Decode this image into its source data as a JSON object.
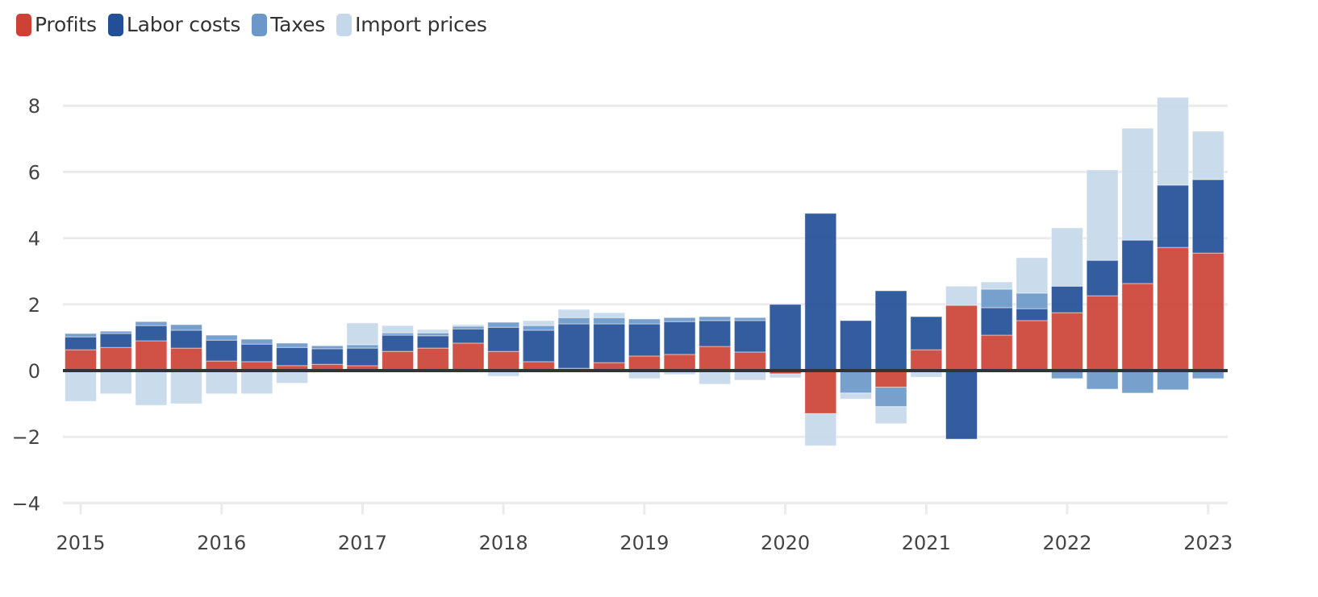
{
  "chart_data": {
    "type": "bar",
    "stacked": true,
    "title": "",
    "xlabel": "",
    "ylabel": "",
    "ylim": [
      -4,
      8.5
    ],
    "yticks": [
      -4,
      -2,
      0,
      2,
      4,
      6,
      8
    ],
    "ytick_labels": [
      "−4",
      "−2",
      "0",
      "2",
      "4",
      "6",
      "8"
    ],
    "xtick_labels": [
      "2015",
      "2016",
      "2017",
      "2018",
      "2019",
      "2020",
      "2021",
      "2022",
      "2023"
    ],
    "grid": true,
    "legend_position": "top-left",
    "categories": [
      "2015 Q1",
      "2015 Q2",
      "2015 Q3",
      "2015 Q4",
      "2016 Q1",
      "2016 Q2",
      "2016 Q3",
      "2016 Q4",
      "2017 Q1",
      "2017 Q2",
      "2017 Q3",
      "2017 Q4",
      "2018 Q1",
      "2018 Q2",
      "2018 Q3",
      "2018 Q4",
      "2019 Q1",
      "2019 Q2",
      "2019 Q3",
      "2019 Q4",
      "2020 Q1",
      "2020 Q2",
      "2020 Q3",
      "2020 Q4",
      "2021 Q1",
      "2021 Q2",
      "2021 Q3",
      "2021 Q4",
      "2022 Q1",
      "2022 Q2",
      "2022 Q3",
      "2022 Q4",
      "2023 Q1"
    ],
    "series": [
      {
        "name": "Profits",
        "color": "#cc4235",
        "values": [
          0.63,
          0.7,
          0.9,
          0.68,
          0.29,
          0.27,
          0.15,
          0.19,
          0.15,
          0.58,
          0.68,
          0.83,
          0.58,
          0.27,
          0.07,
          0.24,
          0.44,
          0.49,
          0.73,
          0.56,
          -0.1,
          -1.3,
          -0.03,
          -0.5,
          0.63,
          1.97,
          1.07,
          1.51,
          1.75,
          2.26,
          2.63,
          3.72,
          3.55
        ]
      },
      {
        "name": "Labor costs",
        "color": "#234f98",
        "values": [
          0.39,
          0.42,
          0.46,
          0.54,
          0.63,
          0.53,
          0.55,
          0.47,
          0.53,
          0.49,
          0.37,
          0.43,
          0.73,
          0.95,
          1.34,
          1.17,
          0.97,
          0.99,
          0.78,
          0.95,
          2.0,
          4.75,
          1.51,
          2.41,
          1.0,
          -2.07,
          0.83,
          0.36,
          0.8,
          1.07,
          1.31,
          1.88,
          2.22
        ]
      },
      {
        "name": "Taxes",
        "color": "#6b98c8",
        "values": [
          0.1,
          0.07,
          0.12,
          0.17,
          0.15,
          0.15,
          0.13,
          0.09,
          0.1,
          0.07,
          0.09,
          0.08,
          0.15,
          0.14,
          0.19,
          0.19,
          0.15,
          0.12,
          0.12,
          0.09,
          0.0,
          0.0,
          -0.65,
          -0.59,
          0.0,
          0.0,
          0.56,
          0.47,
          -0.24,
          -0.56,
          -0.68,
          -0.58,
          -0.24
        ]
      },
      {
        "name": "Import prices",
        "color": "#c5d8ea",
        "values": [
          -0.93,
          -0.7,
          -1.05,
          -1.0,
          -0.7,
          -0.7,
          -0.38,
          0.0,
          0.66,
          0.22,
          0.1,
          0.05,
          -0.17,
          0.15,
          0.25,
          0.15,
          -0.24,
          -0.12,
          -0.41,
          -0.29,
          -0.12,
          -0.97,
          -0.18,
          -0.51,
          -0.2,
          0.58,
          0.22,
          1.07,
          1.76,
          2.73,
          3.38,
          2.65,
          1.46
        ]
      }
    ]
  },
  "legend": {
    "items": [
      {
        "label": "Profits",
        "color": "#cc4235"
      },
      {
        "label": "Labor costs",
        "color": "#234f98"
      },
      {
        "label": "Taxes",
        "color": "#6b98c8"
      },
      {
        "label": "Import prices",
        "color": "#c5d8ea"
      }
    ]
  }
}
